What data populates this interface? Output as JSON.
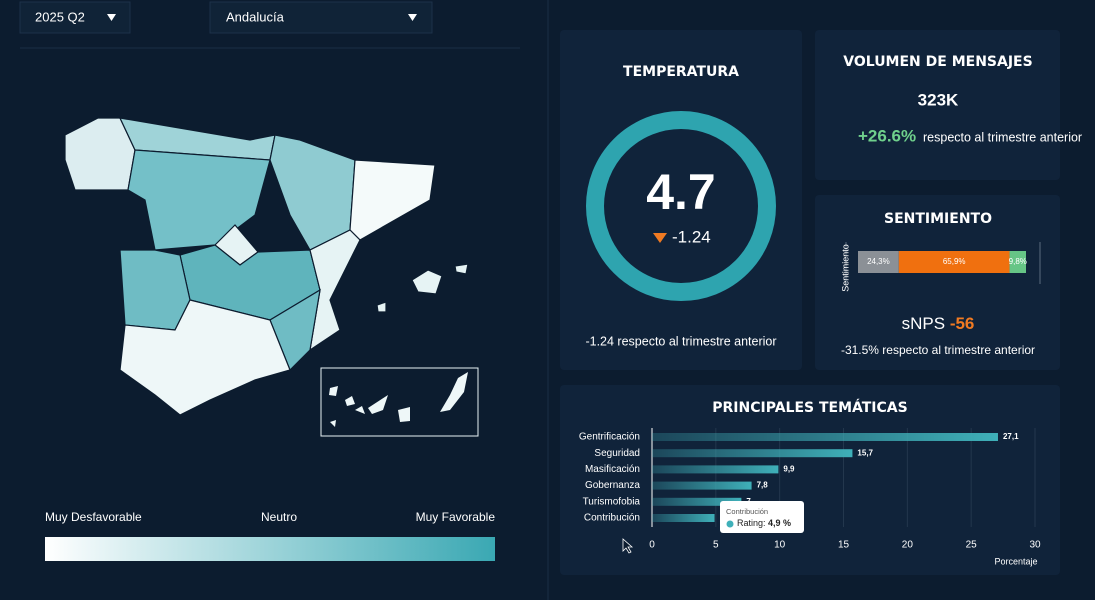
{
  "filters": {
    "period": "2025 Q2",
    "region": "Andalucía"
  },
  "map_legend": {
    "low": "Muy Desfavorable",
    "mid": "Neutro",
    "high": "Muy Favorable"
  },
  "temperature": {
    "title": "TEMPERATURA",
    "value": "4.7",
    "delta": "-1.24",
    "footnote": "-1.24 respecto al trimestre anterior"
  },
  "volume": {
    "title": "VOLUMEN DE MENSAJES",
    "value": "323K",
    "change": "+26.6%",
    "change_text": "respecto al trimestre anterior"
  },
  "sentiment": {
    "title": "SENTIMIENTO",
    "snps_label": "sNPS",
    "snps_value": "-56",
    "footnote": "-31.5% respecto al trimestre anterior"
  },
  "chart_data": [
    {
      "type": "stacked-bar",
      "axis_label": "Sentimiento",
      "values": [
        24.3,
        65.9,
        9.8
      ],
      "value_labels": [
        "24,3%",
        "65,9%",
        "9,8%"
      ],
      "colors": [
        "#8b9096",
        "#f0700f",
        "#66c586"
      ],
      "xlim": [
        0,
        100
      ]
    },
    {
      "type": "bar",
      "title": "PRINCIPALES TEMÁTICAS",
      "categories": [
        "Gentrificación",
        "Seguridad",
        "Masificación",
        "Gobernanza",
        "Turismofobia",
        "Contribución"
      ],
      "values": [
        27.1,
        15.7,
        9.9,
        7.8,
        7,
        4.9
      ],
      "value_labels": [
        "27,1",
        "15,7",
        "9,9",
        "7,8",
        "7",
        null
      ],
      "color": "#3fb0b9",
      "xlim": [
        0,
        30
      ],
      "xticks": [
        0,
        5,
        10,
        15,
        20,
        25,
        30
      ],
      "xlabel": "Porcentaje",
      "grid": true,
      "tooltip": {
        "title": "Contribución",
        "label": "Rating:",
        "value": "4,9 %"
      }
    }
  ]
}
